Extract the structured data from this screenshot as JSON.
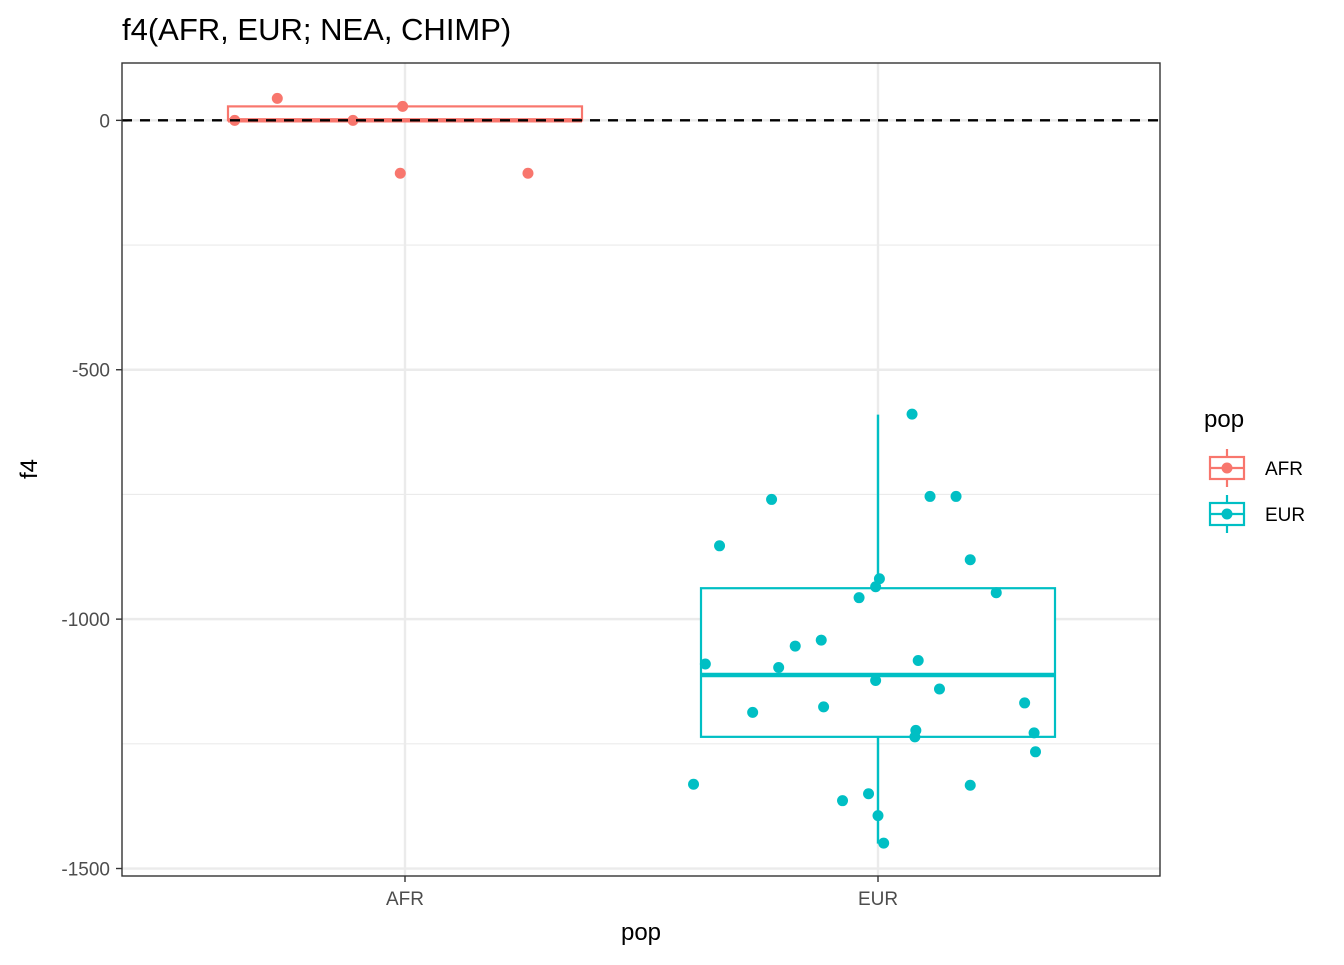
{
  "chart_data": {
    "type": "boxplot",
    "title": "f4(AFR, EUR; NEA, CHIMP)",
    "xlabel": "pop",
    "ylabel": "f4",
    "categories": [
      "AFR",
      "EUR"
    ],
    "y_ticks": [
      0,
      -500,
      -1000,
      -1500
    ],
    "y_tick_labels": [
      "0",
      "-500",
      "-1000",
      "-1500"
    ],
    "ylim": [
      -1515,
      115
    ],
    "reference_line": {
      "y": 0,
      "style": "dashed"
    },
    "grid": true,
    "legend": {
      "title": "pop",
      "position": "right",
      "entries": [
        {
          "label": "AFR",
          "color": "#F8766D"
        },
        {
          "label": "EUR",
          "color": "#00BFC4"
        }
      ]
    },
    "boxes": [
      {
        "category": "AFR",
        "color": "#F8766D",
        "q1": 0,
        "median": 0,
        "q3": 28,
        "whisker_low": 0,
        "whisker_high": 28
      },
      {
        "category": "EUR",
        "color": "#00BFC4",
        "q1": -1236,
        "median": -1112,
        "q3": -938,
        "whisker_low": -1450,
        "whisker_high": -590
      }
    ],
    "series": [
      {
        "name": "AFR",
        "color": "#F8766D",
        "points": [
          {
            "x_offset": -0.36,
            "y": 0
          },
          {
            "x_offset": -0.27,
            "y": 44
          },
          {
            "x_offset": -0.11,
            "y": 0
          },
          {
            "x_offset": -0.01,
            "y": -106
          },
          {
            "x_offset": -0.005,
            "y": 28
          },
          {
            "x_offset": 0.26,
            "y": -106
          }
        ]
      },
      {
        "name": "EUR",
        "color": "#00BFC4",
        "points": [
          {
            "x_offset": -0.39,
            "y": -1331
          },
          {
            "x_offset": -0.365,
            "y": -1090
          },
          {
            "x_offset": -0.335,
            "y": -853
          },
          {
            "x_offset": -0.265,
            "y": -1187
          },
          {
            "x_offset": -0.225,
            "y": -760
          },
          {
            "x_offset": -0.21,
            "y": -1097
          },
          {
            "x_offset": -0.175,
            "y": -1054
          },
          {
            "x_offset": -0.12,
            "y": -1042
          },
          {
            "x_offset": -0.115,
            "y": -1176
          },
          {
            "x_offset": -0.075,
            "y": -1364
          },
          {
            "x_offset": -0.04,
            "y": -957
          },
          {
            "x_offset": -0.02,
            "y": -1350
          },
          {
            "x_offset": -0.005,
            "y": -935
          },
          {
            "x_offset": -0.005,
            "y": -1123
          },
          {
            "x_offset": 0.0,
            "y": -1394
          },
          {
            "x_offset": 0.003,
            "y": -919
          },
          {
            "x_offset": 0.012,
            "y": -1449
          },
          {
            "x_offset": 0.072,
            "y": -589
          },
          {
            "x_offset": 0.078,
            "y": -1236
          },
          {
            "x_offset": 0.08,
            "y": -1223
          },
          {
            "x_offset": 0.085,
            "y": -1083
          },
          {
            "x_offset": 0.11,
            "y": -754
          },
          {
            "x_offset": 0.13,
            "y": -1140
          },
          {
            "x_offset": 0.165,
            "y": -754
          },
          {
            "x_offset": 0.195,
            "y": -881
          },
          {
            "x_offset": 0.195,
            "y": -1333
          },
          {
            "x_offset": 0.25,
            "y": -947
          },
          {
            "x_offset": 0.31,
            "y": -1168
          },
          {
            "x_offset": 0.33,
            "y": -1228
          },
          {
            "x_offset": 0.333,
            "y": -1266
          }
        ]
      }
    ]
  }
}
